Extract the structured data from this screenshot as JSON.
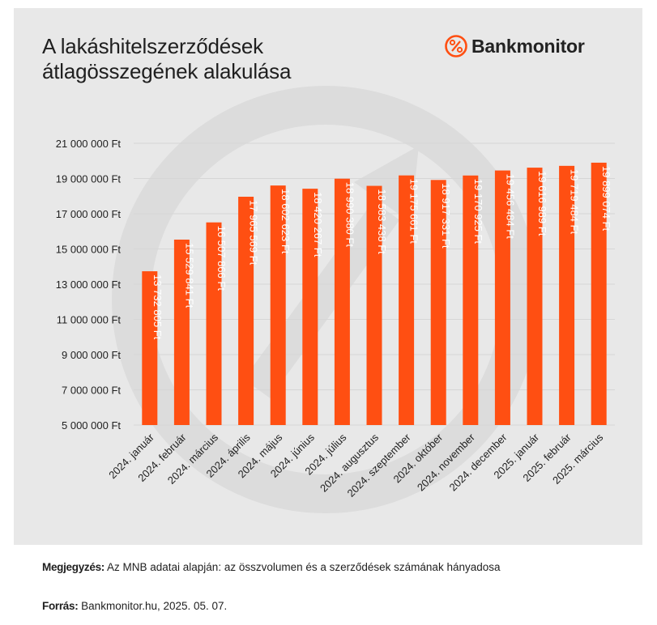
{
  "title_lines": [
    "A lakáshitelszerződések",
    "átlagösszegének alakulása"
  ],
  "brand": {
    "name": "Bankmonitor",
    "logo_icon": "percent-circle-icon",
    "color": "#ff4f12"
  },
  "colors": {
    "bar": "#ff4f12",
    "background": "#e8e8e8"
  },
  "note": {
    "label": "Megjegyzés:",
    "text": " Az MNB adatai alapján: az összvolumen és a szerződések számának hányadosa"
  },
  "source": {
    "label": "Forrás:",
    "text": " Bankmonitor.hu, 2025. 05. 07."
  },
  "chart_data": {
    "type": "bar",
    "title": "A lakáshitelszerződések átlagösszegének alakulása",
    "xlabel": "",
    "ylabel": "",
    "ylim": [
      5000000,
      21000000
    ],
    "grid": true,
    "legend": "none",
    "y_ticks": [
      5000000,
      7000000,
      9000000,
      11000000,
      13000000,
      15000000,
      17000000,
      19000000,
      21000000
    ],
    "y_tick_labels": [
      "5 000 000 Ft",
      "7 000 000 Ft",
      "9 000 000 Ft",
      "11 000 000 Ft",
      "13 000 000 Ft",
      "15 000 000 Ft",
      "17 000 000 Ft",
      "19 000 000 Ft",
      "21 000 000 Ft"
    ],
    "categories": [
      "2024. január",
      "2024. február",
      "2024. március",
      "2024. április",
      "2024. május",
      "2024. június",
      "2024. július",
      "2024. augusztus",
      "2024. szeptember",
      "2024. október",
      "2024. november",
      "2024. december",
      "2025. január",
      "2025. február",
      "2025. március"
    ],
    "values": [
      13732805,
      15529841,
      16507866,
      17965569,
      18602623,
      18420267,
      18990380,
      18583438,
      19175661,
      18917331,
      19170925,
      19456484,
      19616989,
      19719484,
      19899074
    ],
    "value_labels": [
      "13 732 805 Ft",
      "15 529 841 Ft",
      "16 507 866 Ft",
      "17 965 569 Ft",
      "18 602 623 Ft",
      "18 420 267 Ft",
      "18 990 380 Ft",
      "18 583 438 Ft",
      "19 175 661 Ft",
      "18 917 331 Ft",
      "19 170 925 Ft",
      "19 456 484 Ft",
      "19 616 989 Ft",
      "19 719 484 Ft",
      "19 899 074 Ft"
    ]
  }
}
